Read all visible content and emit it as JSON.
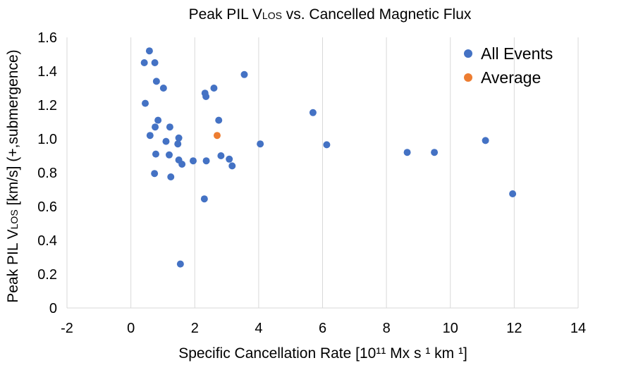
{
  "chart_data": {
    "type": "scatter",
    "title": {
      "main": "Peak PIL V",
      "sub": "LOS",
      "rest": " vs. Cancelled Magnetic Flux"
    },
    "xlabel": "Specific Cancellation Rate [10¹¹ Mx s ¹ km ¹]",
    "ylabel": {
      "main": "Peak PIL V",
      "sub": "LOS",
      "rest": " [km/s] (+,submergence)"
    },
    "xlim": [
      -2,
      14
    ],
    "ylim": [
      0,
      1.6
    ],
    "x_ticks": [
      "-2",
      "0",
      "2",
      "4",
      "6",
      "8",
      "10",
      "12",
      "14"
    ],
    "y_ticks": [
      "0",
      "0.2",
      "0.4",
      "0.6",
      "0.8",
      "1.0",
      "1.2",
      "1.4",
      "1.6"
    ],
    "grid": "vertical",
    "legend_position": "top-right",
    "series": [
      {
        "name": "All Events",
        "color": "#4472C4",
        "points": [
          [
            0.58,
            1.52
          ],
          [
            0.42,
            1.45
          ],
          [
            0.75,
            1.45
          ],
          [
            0.8,
            1.34
          ],
          [
            1.02,
            1.3
          ],
          [
            0.45,
            1.21
          ],
          [
            0.85,
            1.11
          ],
          [
            0.76,
            1.07
          ],
          [
            1.22,
            1.07
          ],
          [
            0.6,
            1.02
          ],
          [
            1.5,
            1.005
          ],
          [
            1.1,
            0.985
          ],
          [
            1.47,
            0.97
          ],
          [
            0.78,
            0.91
          ],
          [
            1.2,
            0.905
          ],
          [
            1.5,
            0.875
          ],
          [
            1.6,
            0.85
          ],
          [
            1.95,
            0.87
          ],
          [
            0.74,
            0.795
          ],
          [
            1.25,
            0.775
          ],
          [
            2.3,
            0.645
          ],
          [
            1.55,
            0.26
          ],
          [
            2.32,
            1.27
          ],
          [
            2.35,
            1.25
          ],
          [
            2.6,
            1.3
          ],
          [
            2.75,
            1.11
          ],
          [
            2.36,
            0.87
          ],
          [
            2.82,
            0.9
          ],
          [
            3.08,
            0.88
          ],
          [
            3.17,
            0.84
          ],
          [
            3.55,
            1.38
          ],
          [
            4.05,
            0.97
          ],
          [
            5.7,
            1.155
          ],
          [
            6.13,
            0.965
          ],
          [
            8.65,
            0.92
          ],
          [
            9.5,
            0.92
          ],
          [
            11.1,
            0.99
          ],
          [
            11.95,
            0.675
          ]
        ]
      },
      {
        "name": "Average",
        "color": "#ED7D31",
        "points": [
          [
            2.7,
            1.02
          ]
        ]
      }
    ]
  }
}
